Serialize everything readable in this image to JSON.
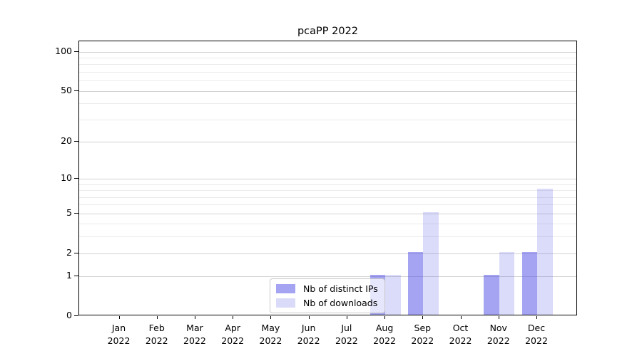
{
  "title": "pcaPP 2022",
  "chart_data": {
    "type": "bar",
    "title": "pcaPP 2022",
    "categories": [
      "Jan",
      "Feb",
      "Mar",
      "Apr",
      "May",
      "Jun",
      "Jul",
      "Aug",
      "Sep",
      "Oct",
      "Nov",
      "Dec"
    ],
    "x_year_label": "2022",
    "series": [
      {
        "name": "Nb of distinct IPs",
        "swatch_color": "#a4a4f2",
        "fill": "rgba(80,80,230,0.52)",
        "values": [
          0,
          0,
          0,
          0,
          0,
          0,
          0,
          1,
          2,
          0,
          1,
          2
        ]
      },
      {
        "name": "Nb of downloads",
        "swatch_color": "#dadaf9",
        "fill": "rgba(80,80,230,0.205)",
        "values": [
          0,
          0,
          0,
          0,
          0,
          0,
          0,
          1,
          5,
          0,
          2,
          8
        ]
      }
    ],
    "yscale": "log10(value+1)",
    "yticks": [
      0,
      1,
      2,
      5,
      10,
      20,
      50,
      100
    ],
    "minor_yticks": [
      3,
      4,
      6,
      7,
      8,
      9,
      30,
      40,
      60,
      70,
      80,
      90
    ],
    "ymax": 120,
    "ylim": [
      0,
      120
    ],
    "xlabel": "",
    "ylabel": "",
    "grid": "horizontal",
    "legend_position": "bottom-center",
    "colors": {
      "axis": "#000000",
      "major_grid": "#d2d2d2",
      "minor_grid": "#ebebeb",
      "legend_border": "#c9c9c9"
    }
  }
}
